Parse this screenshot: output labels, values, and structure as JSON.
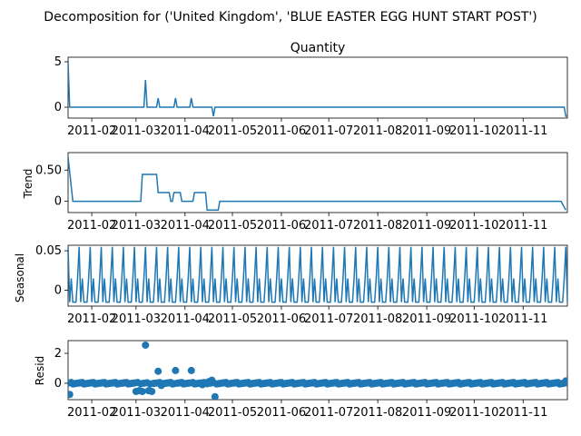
{
  "suptitle": "Decomposition for ('United Kingdom', 'BLUE EASTER EGG HUNT START POST')",
  "x_ticks": [
    "2011-02",
    "2011-03",
    "2011-04",
    "2011-05",
    "2011-06",
    "2011-07",
    "2011-08",
    "2011-09",
    "2011-10",
    "2011-11"
  ],
  "line_color": "#1f77b4",
  "chart_data": [
    {
      "type": "line",
      "title": "Quantity",
      "ylabel": "",
      "ylim": [
        -1.2,
        5.5
      ],
      "yticks": [
        0,
        5
      ],
      "xlim": [
        "2011-01-17",
        "2011-11-29"
      ],
      "series": [
        {
          "x": [
            "2011-01-17",
            "2011-01-18",
            "2011-03-06",
            "2011-03-07",
            "2011-03-08",
            "2011-03-14",
            "2011-03-15",
            "2011-03-16",
            "2011-03-25",
            "2011-03-26",
            "2011-03-27",
            "2011-04-04",
            "2011-04-05",
            "2011-04-06",
            "2011-04-18",
            "2011-04-19",
            "2011-04-20",
            "2011-11-27",
            "2011-11-28",
            "2011-11-29"
          ],
          "y": [
            5,
            0,
            0,
            3,
            0,
            0,
            1,
            0,
            0,
            1,
            0,
            0,
            1,
            0,
            0,
            -1,
            0,
            0,
            -1,
            -1
          ]
        }
      ]
    },
    {
      "type": "line",
      "title": "",
      "ylabel": "Trend",
      "ylim": [
        -0.18,
        0.78
      ],
      "yticks": [
        0.0,
        0.5
      ],
      "xlim": [
        "2011-01-17",
        "2011-11-29"
      ],
      "series": [
        {
          "x": [
            "2011-01-17",
            "2011-01-20",
            "2011-03-04",
            "2011-03-05",
            "2011-03-14",
            "2011-03-15",
            "2011-03-22",
            "2011-03-23",
            "2011-03-24",
            "2011-03-25",
            "2011-03-29",
            "2011-03-30",
            "2011-04-06",
            "2011-04-07",
            "2011-04-14",
            "2011-04-15",
            "2011-04-22",
            "2011-04-23",
            "2011-11-25",
            "2011-11-28"
          ],
          "y": [
            0.71,
            0.0,
            0.0,
            0.43,
            0.43,
            0.14,
            0.14,
            0.0,
            0.0,
            0.14,
            0.14,
            0.0,
            0.0,
            0.14,
            0.14,
            -0.14,
            -0.14,
            0.0,
            0.0,
            -0.14
          ]
        }
      ]
    },
    {
      "type": "line",
      "title": "",
      "ylabel": "Seasonal",
      "ylim": [
        -0.02,
        0.057
      ],
      "yticks": [
        0.0,
        0.05
      ],
      "xlim": [
        "2011-01-17",
        "2011-11-29"
      ],
      "periodic": {
        "start": "2011-01-17",
        "end": "2011-11-29",
        "period_days": 7,
        "pattern": [
          0.055,
          -0.015,
          0.015,
          -0.015,
          -0.015,
          -0.015,
          0.015
        ]
      },
      "series": []
    },
    {
      "type": "scatter",
      "title": "",
      "ylabel": "Resid",
      "ylim": [
        -1.1,
        2.85
      ],
      "yticks": [
        0,
        2
      ],
      "xlim": [
        "2011-01-17",
        "2011-11-29"
      ],
      "baseline_noise": 0.05,
      "series": [
        {
          "x": [
            "2011-01-18",
            "2011-03-01",
            "2011-03-03",
            "2011-03-05",
            "2011-03-07",
            "2011-03-09",
            "2011-03-11",
            "2011-03-15",
            "2011-03-17",
            "2011-03-26",
            "2011-04-05",
            "2011-04-12",
            "2011-04-14",
            "2011-04-16",
            "2011-04-18",
            "2011-04-20",
            "2011-11-28"
          ],
          "y": [
            -0.75,
            -0.55,
            -0.5,
            -0.55,
            2.55,
            -0.5,
            -0.55,
            0.8,
            -0.15,
            0.85,
            0.85,
            -0.1,
            0.0,
            0.1,
            0.2,
            -0.9,
            0.15
          ]
        }
      ]
    }
  ]
}
